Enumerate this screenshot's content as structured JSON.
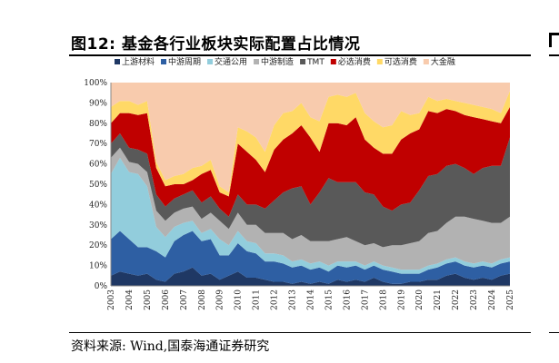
{
  "header": {
    "title": "图12:  基金各行业板块实际配置占比情况"
  },
  "footer": {
    "source": "资料来源:  Wind,国泰海通证券研究"
  },
  "chart_data": {
    "type": "area",
    "stacked": true,
    "title": "图12:  基金各行业板块实际配置占比情况",
    "xlabel": "",
    "ylabel": "",
    "ylim": [
      0,
      100
    ],
    "y_ticks": [
      "0%",
      "10%",
      "20%",
      "30%",
      "40%",
      "50%",
      "60%",
      "70%",
      "80%",
      "90%",
      "100%"
    ],
    "x_ticks": [
      "2003",
      "2004",
      "2005",
      "2006",
      "2007",
      "2008",
      "2009",
      "2010",
      "2011",
      "2012",
      "2013",
      "2014",
      "2015",
      "2016",
      "2017",
      "2018",
      "2019",
      "2020",
      "2021",
      "2022",
      "2023",
      "2024",
      "2025"
    ],
    "legend_position": "top",
    "x": [
      2003,
      2003.5,
      2004,
      2004.5,
      2005,
      2005.5,
      2006,
      2006.5,
      2007,
      2007.5,
      2008,
      2008.5,
      2009,
      2009.5,
      2010,
      2010.5,
      2011,
      2011.5,
      2012,
      2012.5,
      2013,
      2013.5,
      2014,
      2014.5,
      2015,
      2015.5,
      2016,
      2016.5,
      2017,
      2017.5,
      2018,
      2018.5,
      2019,
      2019.5,
      2020,
      2020.5,
      2021,
      2021.5,
      2022,
      2022.5,
      2023,
      2023.5,
      2024,
      2024.5,
      2025
    ],
    "series": [
      {
        "name": "上游材料",
        "color": "#1f3864",
        "values": [
          5,
          7,
          6,
          5,
          6,
          3,
          2,
          6,
          7,
          9,
          5,
          6,
          3,
          5,
          7,
          4,
          4,
          3,
          2,
          2,
          1,
          2,
          1,
          2,
          1,
          3,
          2,
          3,
          2,
          4,
          2,
          1,
          1,
          2,
          2,
          3,
          3,
          5,
          6,
          4,
          3,
          4,
          3,
          5,
          6
        ]
      },
      {
        "name": "中游周期",
        "color": "#2e5fa3",
        "values": [
          18,
          20,
          17,
          14,
          13,
          14,
          12,
          16,
          18,
          18,
          17,
          17,
          12,
          10,
          14,
          13,
          12,
          9,
          10,
          9,
          8,
          8,
          7,
          7,
          6,
          7,
          7,
          7,
          6,
          6,
          6,
          6,
          5,
          4,
          4,
          5,
          6,
          6,
          6,
          6,
          6,
          6,
          6,
          6,
          6
        ]
      },
      {
        "name": "交通公用",
        "color": "#92cddc",
        "values": [
          32,
          36,
          33,
          36,
          30,
          12,
          10,
          7,
          6,
          5,
          4,
          5,
          8,
          5,
          6,
          5,
          5,
          4,
          4,
          4,
          3,
          3,
          3,
          3,
          3,
          2,
          3,
          2,
          2,
          2,
          2,
          2,
          2,
          2,
          2,
          2,
          2,
          2,
          2,
          2,
          2,
          2,
          2,
          2,
          2
        ]
      },
      {
        "name": "中游制造",
        "color": "#b2b2b2",
        "values": [
          8,
          5,
          5,
          5,
          7,
          8,
          8,
          7,
          7,
          7,
          7,
          8,
          9,
          8,
          9,
          8,
          9,
          10,
          10,
          11,
          11,
          12,
          11,
          10,
          12,
          11,
          12,
          10,
          10,
          9,
          9,
          11,
          12,
          13,
          14,
          16,
          16,
          18,
          20,
          22,
          22,
          20,
          20,
          18,
          20
        ]
      },
      {
        "name": "TMT",
        "color": "#595959",
        "values": [
          7,
          7,
          7,
          7,
          9,
          8,
          7,
          7,
          7,
          8,
          8,
          8,
          6,
          6,
          9,
          10,
          10,
          12,
          16,
          20,
          25,
          24,
          18,
          24,
          31,
          28,
          27,
          29,
          26,
          24,
          20,
          17,
          20,
          20,
          25,
          28,
          28,
          28,
          26,
          24,
          22,
          26,
          28,
          28,
          39
        ]
      },
      {
        "name": "必选消费",
        "color": "#c00000",
        "values": [
          10,
          10,
          17,
          17,
          20,
          13,
          10,
          7,
          5,
          5,
          14,
          13,
          8,
          10,
          25,
          26,
          22,
          18,
          25,
          26,
          27,
          30,
          33,
          20,
          27,
          29,
          28,
          32,
          26,
          23,
          26,
          28,
          32,
          34,
          30,
          32,
          30,
          28,
          26,
          26,
          28,
          24,
          22,
          21,
          15
        ]
      },
      {
        "name": "可选消费",
        "color": "#ffd966",
        "values": [
          8,
          6,
          6,
          5,
          6,
          3,
          3,
          4,
          5,
          6,
          4,
          5,
          3,
          2,
          8,
          10,
          11,
          10,
          12,
          13,
          11,
          11,
          10,
          15,
          13,
          14,
          14,
          12,
          13,
          13,
          13,
          14,
          14,
          9,
          8,
          7,
          6,
          5,
          5,
          6,
          6,
          6,
          6,
          5,
          8
        ]
      },
      {
        "name": "大金融",
        "color": "#f8cbad",
        "values": [
          12,
          9,
          9,
          11,
          9,
          39,
          48,
          46,
          45,
          42,
          41,
          38,
          51,
          54,
          22,
          24,
          27,
          34,
          21,
          15,
          14,
          10,
          17,
          19,
          7,
          6,
          7,
          5,
          15,
          19,
          22,
          21,
          14,
          16,
          15,
          7,
          9,
          8,
          9,
          10,
          11,
          12,
          13,
          15,
          4
        ]
      }
    ]
  }
}
